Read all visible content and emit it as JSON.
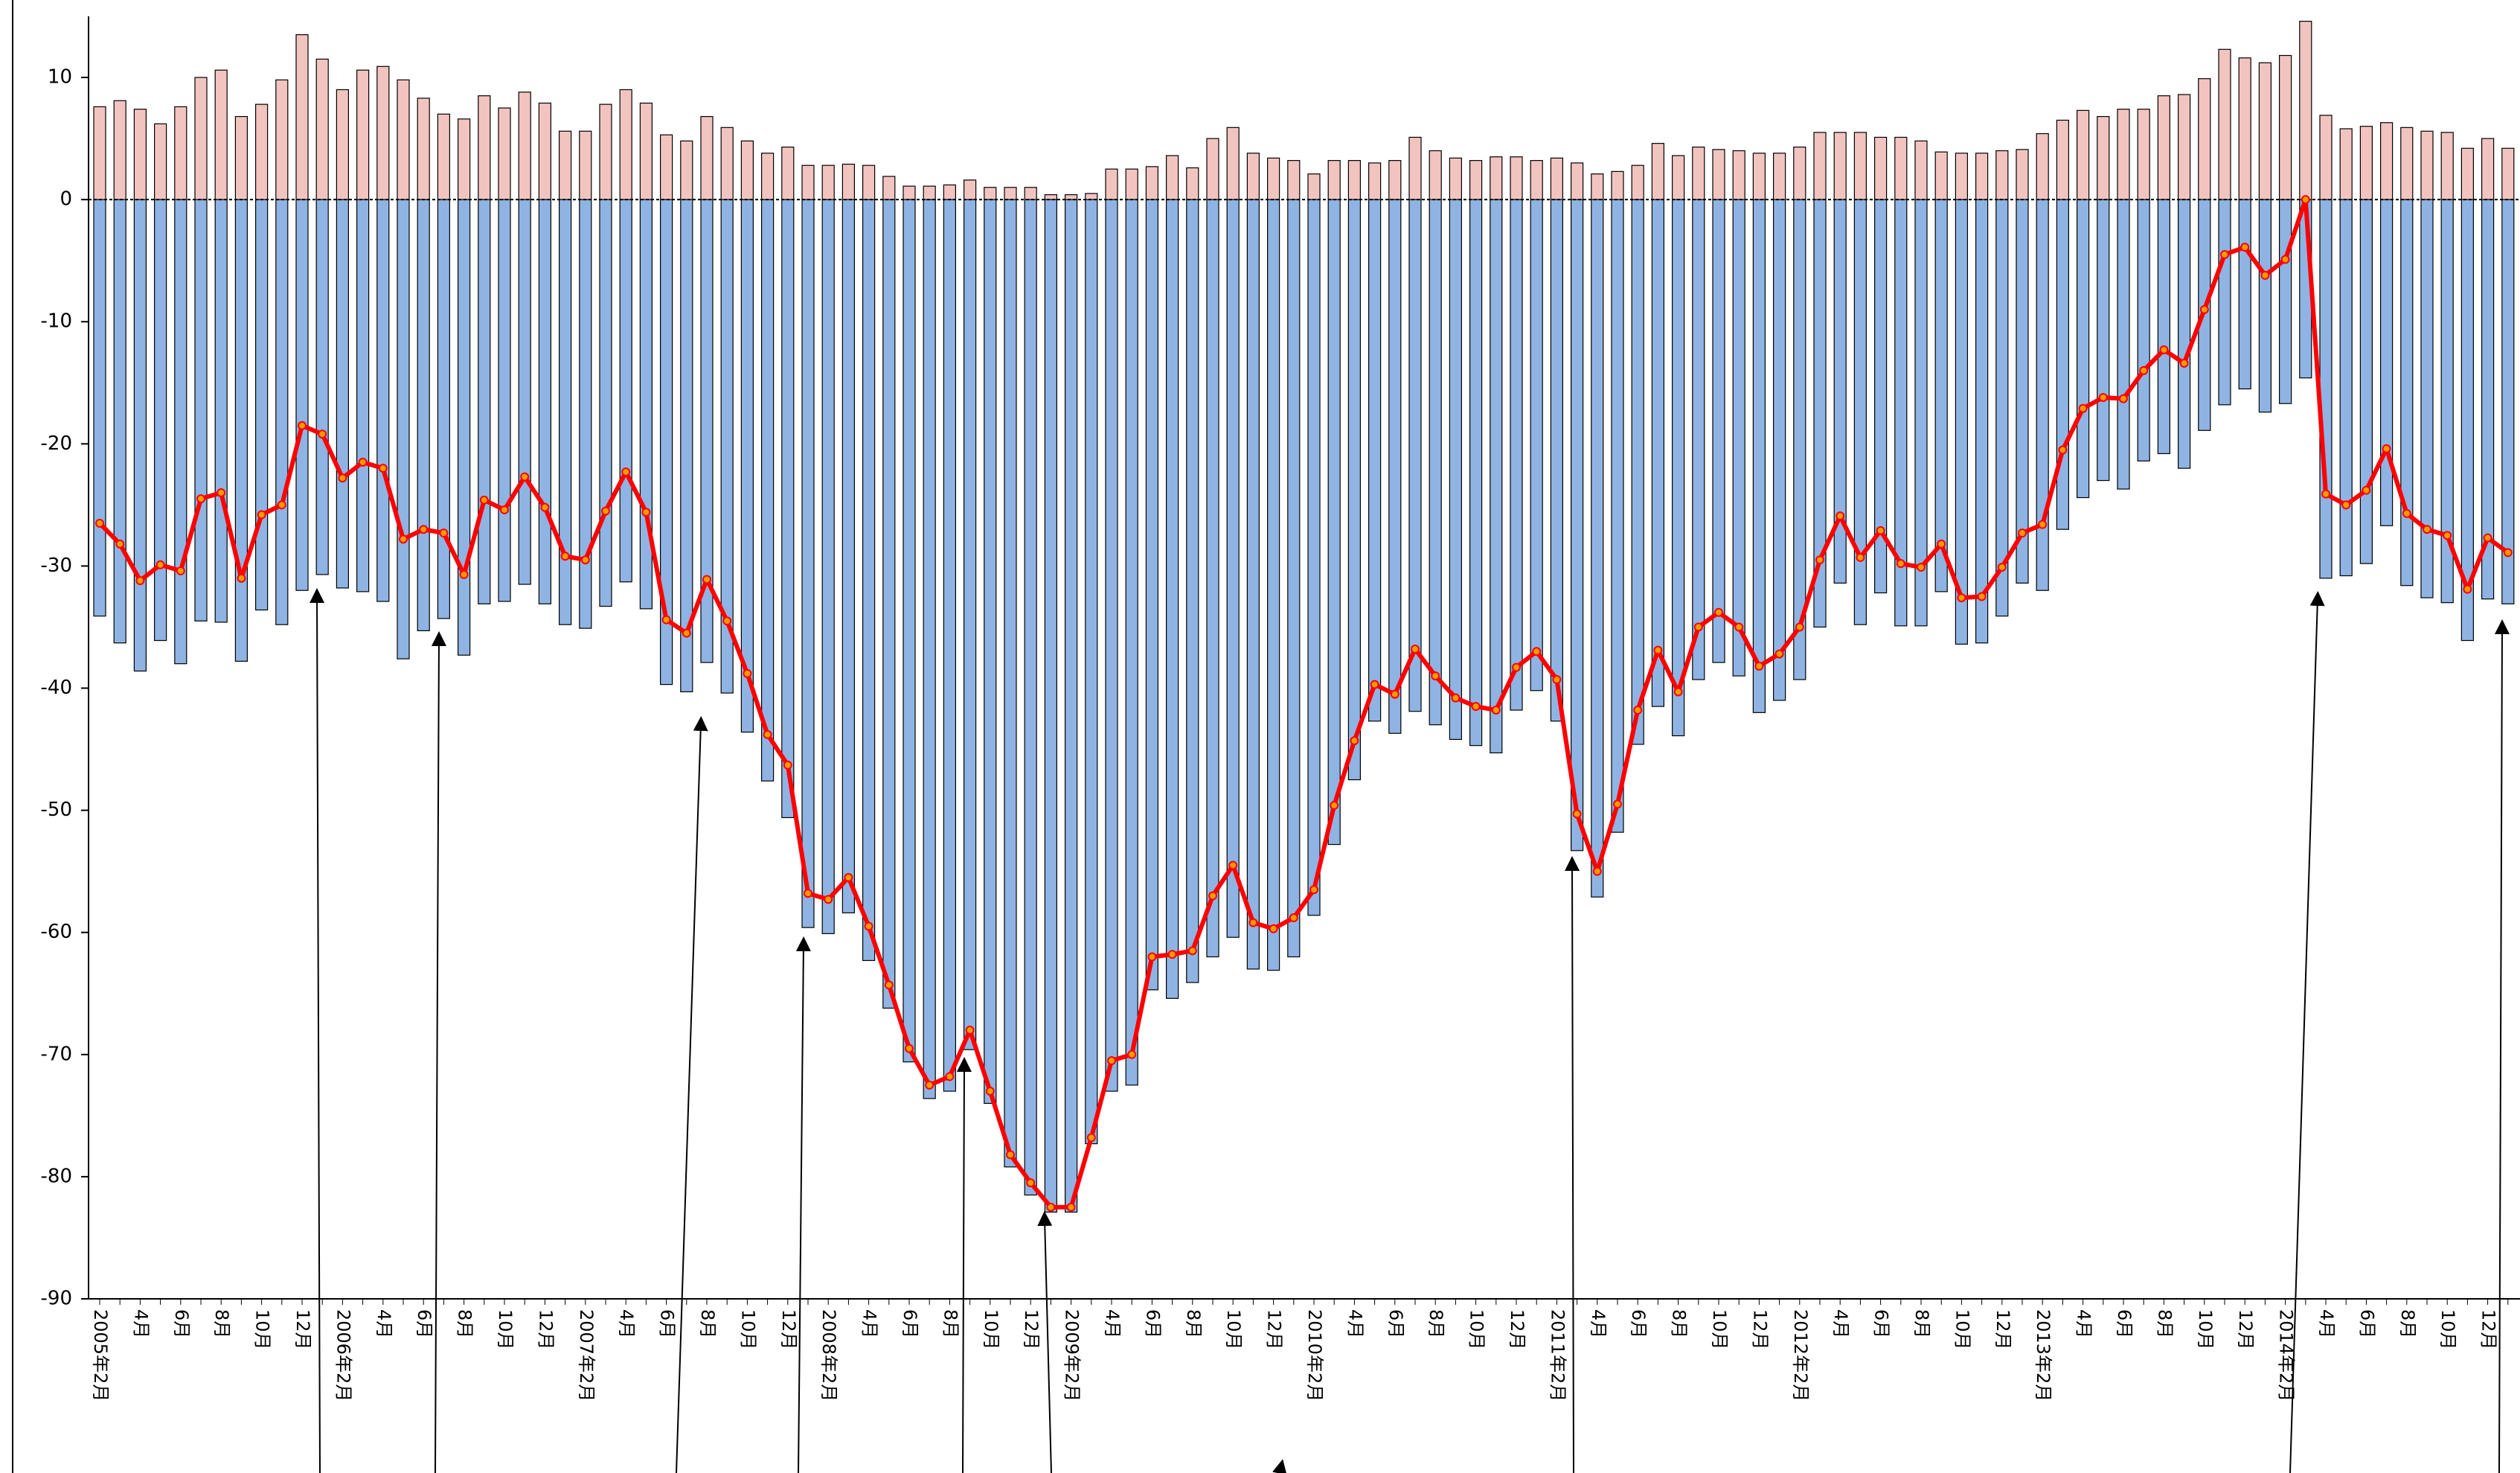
{
  "chart_data": {
    "type": "bar-line",
    "categories": [
      "2005年2月",
      null,
      "4月",
      null,
      "6月",
      null,
      "8月",
      null,
      "10月",
      null,
      "12月",
      null,
      "2006年2月",
      null,
      "4月",
      null,
      "6月",
      null,
      "8月",
      null,
      "10月",
      null,
      "12月",
      null,
      "2007年2月",
      null,
      "4月",
      null,
      "6月",
      null,
      "8月",
      null,
      "10月",
      null,
      "12月",
      null,
      "2008年2月",
      null,
      "4月",
      null,
      "6月",
      null,
      "8月",
      null,
      "10月",
      null,
      "12月",
      null,
      "2009年2月",
      null,
      "4月",
      null,
      "6月",
      null,
      "8月",
      null,
      "10月",
      null,
      "12月",
      null,
      "2010年2月",
      null,
      "4月",
      null,
      "6月",
      null,
      "8月",
      null,
      "10月",
      null,
      "12月",
      null,
      "2011年2月",
      null,
      "4月",
      null,
      "6月",
      null,
      "8月",
      null,
      "10月",
      null,
      "12月",
      null,
      "2012年2月",
      null,
      "4月",
      null,
      "6月",
      null,
      "8月",
      null,
      "10月",
      null,
      "12月",
      null,
      "2013年2月",
      null,
      "4月",
      null,
      "6月",
      null,
      "8月",
      null,
      "10月",
      null,
      "12月",
      null,
      "2014年2月",
      null,
      "4月",
      null,
      "6月",
      null,
      "8月",
      null,
      "10月",
      null,
      "12月",
      null
    ],
    "series": [
      {
        "kind": "bar",
        "color": "#f2c4c0",
        "values": [
          7.6,
          8.1,
          7.4,
          6.2,
          7.6,
          10,
          10.6,
          6.8,
          7.8,
          9.8,
          13.5,
          11.5,
          9,
          10.6,
          10.9,
          9.8,
          8.3,
          7,
          6.6,
          8.5,
          7.5,
          8.8,
          7.9,
          5.6,
          5.6,
          7.8,
          9,
          7.9,
          5.3,
          4.8,
          6.8,
          5.9,
          4.8,
          3.8,
          4.3,
          2.8,
          2.8,
          2.9,
          2.8,
          1.9,
          1.1,
          1.1,
          1.2,
          1.6,
          1,
          1,
          1,
          0.4,
          0.4,
          0.5,
          2.5,
          2.5,
          2.7,
          3.6,
          2.6,
          5,
          5.9,
          3.8,
          3.4,
          3.2,
          2.1,
          3.2,
          3.2,
          3,
          3.2,
          5.1,
          4,
          3.4,
          3.2,
          3.5,
          3.5,
          3.2,
          3.4,
          3,
          2.1,
          2.3,
          2.8,
          4.6,
          3.6,
          4.3,
          4.1,
          4,
          3.8,
          3.8,
          4.3,
          5.5,
          5.5,
          5.5,
          5.1,
          5.1,
          4.8,
          3.9,
          3.8,
          3.8,
          4,
          4.1,
          5.4,
          6.5,
          7.3,
          6.8,
          7.4,
          7.4,
          8.5,
          8.6,
          9.9,
          12.3,
          11.6,
          11.2,
          11.8,
          14.6,
          6.9,
          5.8,
          6,
          6.3,
          5.9,
          5.6,
          5.5,
          4.2,
          5,
          4.2
        ]
      },
      {
        "kind": "bar",
        "color": "#8fb4e3",
        "values": [
          -34.1,
          -36.3,
          -38.6,
          -36.1,
          -38.0,
          -34.5,
          -34.6,
          -37.8,
          -33.6,
          -34.8,
          -32.0,
          -30.7,
          -31.8,
          -32.1,
          -32.9,
          -37.6,
          -35.3,
          -34.3,
          -37.3,
          -33.1,
          -32.9,
          -31.5,
          -33.1,
          -34.8,
          -35.1,
          -33.3,
          -31.3,
          -33.5,
          -39.7,
          -40.3,
          -37.9,
          -40.4,
          -43.6,
          -47.6,
          -50.6,
          -59.6,
          -60.1,
          -58.4,
          -62.3,
          -66.2,
          -70.6,
          -73.6,
          -73.0,
          -69.6,
          -74.0,
          -79.2,
          -81.5,
          -82.9,
          -82.9,
          -77.3,
          -73.0,
          -72.5,
          -64.7,
          -65.4,
          -64.1,
          -62.0,
          -60.4,
          -63.0,
          -63.1,
          -62.0,
          -58.6,
          -52.8,
          -47.5,
          -42.7,
          -43.7,
          -41.9,
          -43.0,
          -44.2,
          -44.7,
          -45.3,
          -41.8,
          -40.2,
          -42.7,
          -53.3,
          -57.1,
          -51.8,
          -44.6,
          -41.5,
          -43.9,
          -39.3,
          -37.9,
          -39.0,
          -42.0,
          -41.0,
          -39.3,
          -35.0,
          -31.4,
          -34.8,
          -32.2,
          -34.9,
          -34.9,
          -32.1,
          -36.4,
          -36.3,
          -34.1,
          -31.4,
          -32.0,
          -27.0,
          -24.4,
          -23.0,
          -23.7,
          -21.4,
          -20.8,
          -22.0,
          -18.9,
          -16.8,
          -15.5,
          -17.4,
          -16.7,
          -14.6,
          -31.0,
          -30.8,
          -29.8,
          -26.7,
          -31.6,
          -32.6,
          -33.0,
          -36.1,
          -32.7,
          -33.1
        ]
      },
      {
        "kind": "line",
        "color": "#ff0000",
        "values": [
          -26.5,
          -28.2,
          -31.2,
          -29.9,
          -30.4,
          -24.5,
          -24,
          -31,
          -25.8,
          -25,
          -18.5,
          -19.2,
          -22.8,
          -21.5,
          -22,
          -27.8,
          -27,
          -27.3,
          -30.7,
          -24.6,
          -25.4,
          -22.7,
          -25.2,
          -29.2,
          -29.5,
          -25.5,
          -22.3,
          -25.6,
          -34.4,
          -35.5,
          -31.1,
          -34.5,
          -38.8,
          -43.8,
          -46.3,
          -56.8,
          -57.3,
          -55.5,
          -59.5,
          -64.3,
          -69.5,
          -72.5,
          -71.8,
          -68,
          -73,
          -78.2,
          -80.5,
          -82.5,
          -82.5,
          -76.8,
          -70.5,
          -70,
          -62,
          -61.8,
          -61.5,
          -57,
          -54.5,
          -59.2,
          -59.7,
          -58.8,
          -56.5,
          -49.6,
          -44.3,
          -39.7,
          -40.5,
          -36.8,
          -39,
          -40.8,
          -41.5,
          -41.8,
          -38.3,
          -37,
          -39.3,
          -50.3,
          -55,
          -49.5,
          -41.8,
          -36.9,
          -40.3,
          -35,
          -33.8,
          -35,
          -38.2,
          -37.2,
          -35,
          -29.5,
          -25.9,
          -29.3,
          -27.1,
          -29.8,
          -30.1,
          -28.2,
          -32.6,
          -32.5,
          -30.1,
          -27.3,
          -26.6,
          -20.5,
          -17.1,
          -16.2,
          -16.3,
          -14,
          -12.3,
          -13.4,
          -9,
          -4.5,
          -3.9,
          -6.2,
          -4.9,
          0,
          -24.1,
          -25,
          -23.8,
          -20.4,
          -25.7,
          -27,
          -27.5,
          -31.9,
          -27.7,
          -28.9
        ]
      }
    ],
    "ylim": [
      -90,
      15
    ],
    "yticks": [
      -90,
      -80,
      -70,
      -60,
      -50,
      -40,
      -30,
      -20,
      -10,
      0,
      10
    ]
  }
}
